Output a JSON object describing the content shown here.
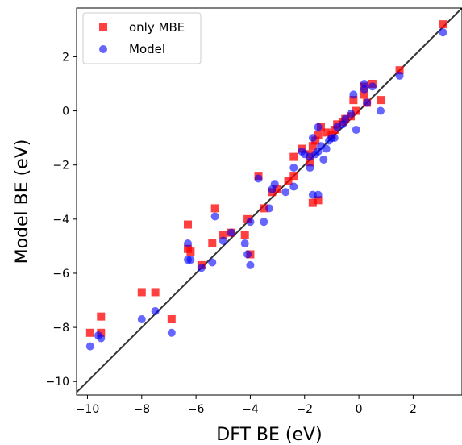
{
  "chart_data": {
    "type": "scatter",
    "title": "",
    "xlabel": "DFT BE (eV)",
    "ylabel": "Model BE (eV)",
    "xlim": [
      -10.4,
      3.8
    ],
    "ylim": [
      -10.5,
      3.8
    ],
    "x_ticks": [
      -10,
      -8,
      -6,
      -4,
      -2,
      0,
      2
    ],
    "y_ticks": [
      -10,
      -8,
      -6,
      -4,
      -2,
      0,
      2
    ],
    "x_tick_labels": [
      "−10",
      "−8",
      "−6",
      "−4",
      "−2",
      "0",
      "2"
    ],
    "y_tick_labels": [
      "−10",
      "−8",
      "−6",
      "−4",
      "−2",
      "0",
      "2"
    ],
    "grid": false,
    "legend_position": "top-left",
    "parity_line": {
      "color": "#333333"
    },
    "series": [
      {
        "name": "only MBE",
        "marker": "square",
        "color": "#ff0000",
        "points": [
          [
            3.1,
            3.2
          ],
          [
            1.5,
            1.5
          ],
          [
            0.8,
            0.4
          ],
          [
            0.5,
            1.0
          ],
          [
            0.3,
            0.3
          ],
          [
            0.2,
            0.6
          ],
          [
            0.2,
            0.9
          ],
          [
            -0.1,
            0.0
          ],
          [
            -0.2,
            0.4
          ],
          [
            -0.3,
            -0.2
          ],
          [
            -0.5,
            -0.3
          ],
          [
            -0.6,
            -0.4
          ],
          [
            -0.8,
            -0.5
          ],
          [
            -0.9,
            -0.7
          ],
          [
            -1.0,
            -0.9
          ],
          [
            -1.2,
            -0.8
          ],
          [
            -1.4,
            -0.6
          ],
          [
            -1.5,
            -0.9
          ],
          [
            -1.6,
            -1.1
          ],
          [
            -1.7,
            -1.3
          ],
          [
            -1.8,
            -1.6
          ],
          [
            -1.8,
            -1.9
          ],
          [
            -2.1,
            -1.4
          ],
          [
            -2.4,
            -1.7
          ],
          [
            -2.4,
            -2.4
          ],
          [
            -2.6,
            -2.6
          ],
          [
            -3.0,
            -2.9
          ],
          [
            -3.2,
            -3.0
          ],
          [
            -3.7,
            -2.4
          ],
          [
            -3.5,
            -3.6
          ],
          [
            -4.1,
            -4.0
          ],
          [
            -4.0,
            -5.3
          ],
          [
            -4.2,
            -4.6
          ],
          [
            -4.7,
            -4.5
          ],
          [
            -5.0,
            -4.6
          ],
          [
            -5.4,
            -4.9
          ],
          [
            -5.3,
            -3.6
          ],
          [
            -5.8,
            -5.7
          ],
          [
            -6.2,
            -5.2
          ],
          [
            -6.3,
            -4.2
          ],
          [
            -6.3,
            -5.1
          ],
          [
            -6.9,
            -7.7
          ],
          [
            -7.5,
            -6.7
          ],
          [
            -8.0,
            -6.7
          ],
          [
            -9.5,
            -7.6
          ],
          [
            -9.5,
            -8.2
          ],
          [
            -9.9,
            -8.2
          ],
          [
            -1.5,
            -3.3
          ],
          [
            -1.7,
            -3.4
          ]
        ]
      },
      {
        "name": "Model",
        "marker": "circle",
        "color": "#0000ff",
        "points": [
          [
            3.1,
            2.9
          ],
          [
            1.5,
            1.3
          ],
          [
            0.8,
            0.0
          ],
          [
            0.5,
            0.9
          ],
          [
            0.3,
            0.3
          ],
          [
            0.2,
            1.0
          ],
          [
            0.2,
            0.8
          ],
          [
            -0.1,
            -0.7
          ],
          [
            -0.2,
            0.6
          ],
          [
            -0.3,
            -0.1
          ],
          [
            -0.5,
            -0.3
          ],
          [
            -0.6,
            -0.5
          ],
          [
            -0.8,
            -0.6
          ],
          [
            -0.9,
            -1.0
          ],
          [
            -1.0,
            -1.0
          ],
          [
            -1.2,
            -1.4
          ],
          [
            -1.3,
            -1.8
          ],
          [
            -1.4,
            -1.3
          ],
          [
            -1.5,
            -1.5
          ],
          [
            -1.5,
            -0.6
          ],
          [
            -1.6,
            -1.6
          ],
          [
            -1.7,
            -1.0
          ],
          [
            -1.8,
            -2.1
          ],
          [
            -1.8,
            -1.7
          ],
          [
            -2.1,
            -1.5
          ],
          [
            -2.4,
            -2.1
          ],
          [
            -2.4,
            -2.8
          ],
          [
            -2.7,
            -3.0
          ],
          [
            -3.1,
            -2.7
          ],
          [
            -3.2,
            -2.9
          ],
          [
            -3.7,
            -2.5
          ],
          [
            -3.5,
            -4.1
          ],
          [
            -3.3,
            -3.6
          ],
          [
            -4.0,
            -4.1
          ],
          [
            -4.0,
            -5.7
          ],
          [
            -4.1,
            -5.3
          ],
          [
            -4.2,
            -4.9
          ],
          [
            -4.7,
            -4.5
          ],
          [
            -5.0,
            -4.8
          ],
          [
            -5.3,
            -3.9
          ],
          [
            -5.4,
            -5.6
          ],
          [
            -5.8,
            -5.8
          ],
          [
            -6.2,
            -5.5
          ],
          [
            -6.3,
            -4.9
          ],
          [
            -6.3,
            -5.5
          ],
          [
            -6.9,
            -8.2
          ],
          [
            -7.5,
            -7.4
          ],
          [
            -8.0,
            -7.7
          ],
          [
            -9.5,
            -8.4
          ],
          [
            -9.6,
            -8.3
          ],
          [
            -9.9,
            -8.7
          ],
          [
            -1.5,
            -3.1
          ],
          [
            -1.7,
            -3.1
          ],
          [
            -2.0,
            -1.6
          ],
          [
            -1.1,
            -1.1
          ]
        ]
      }
    ]
  }
}
